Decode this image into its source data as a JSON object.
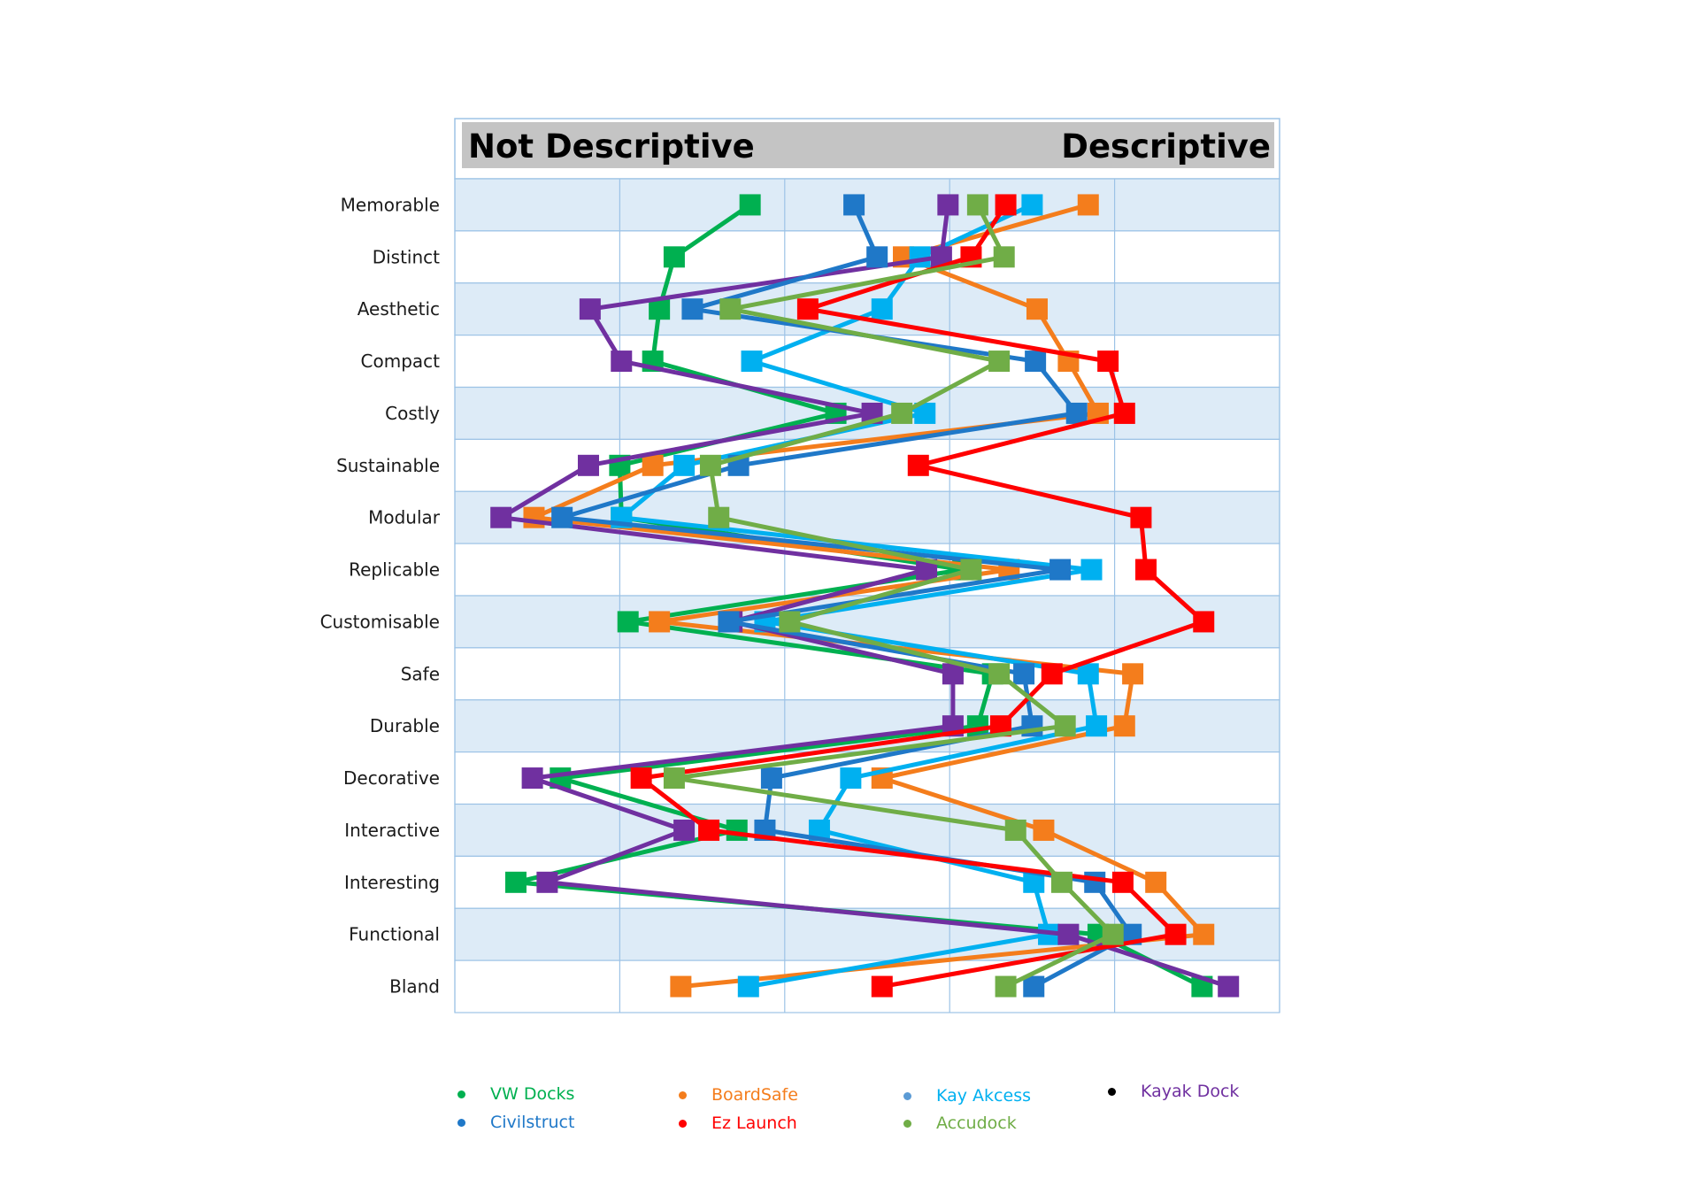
{
  "chart_data": {
    "type": "line",
    "orientation": "horizontal-profile",
    "header": {
      "left": "Not Descriptive",
      "right": "Descriptive"
    },
    "categories": [
      "Memorable",
      "Distinct",
      "Aesthetic",
      "Compact",
      "Costly",
      "Sustainable",
      "Modular",
      "Replicable",
      "Customisable",
      "Safe",
      "Durable",
      "Decorative",
      "Interactive",
      "Interesting",
      "Functional",
      "Bland"
    ],
    "xlim": [
      0,
      5
    ],
    "grid": true,
    "legend_position": "bottom",
    "series": [
      {
        "name": "VW Docks",
        "color": "#00b050",
        "legend_dot": "#00b050",
        "values": [
          1.79,
          1.33,
          1.24,
          1.2,
          2.31,
          1.0,
          1.01,
          3.08,
          1.05,
          3.26,
          3.17,
          0.64,
          1.71,
          0.37,
          3.9,
          4.53
        ]
      },
      {
        "name": "BoardSafe",
        "color": "#f47d1c",
        "legend_dot": "#f47d1c",
        "values": [
          3.84,
          2.72,
          3.53,
          3.72,
          3.9,
          1.2,
          0.48,
          3.36,
          1.24,
          4.11,
          4.06,
          2.59,
          3.57,
          4.25,
          4.54,
          1.37
        ]
      },
      {
        "name": "Kay Akcess",
        "color": "#00b0f0",
        "legend_dot": "#5b9bd5",
        "values": [
          3.5,
          2.82,
          2.59,
          1.8,
          2.85,
          1.39,
          1.01,
          3.86,
          1.88,
          3.84,
          3.89,
          2.4,
          2.21,
          3.51,
          3.6,
          1.78
        ]
      },
      {
        "name": "Kayak Dock",
        "color": "#7030a0",
        "legend_dot": "#000000",
        "values": [
          2.99,
          2.95,
          0.82,
          1.01,
          2.53,
          0.81,
          0.28,
          2.86,
          1.68,
          3.02,
          3.02,
          0.47,
          1.39,
          0.56,
          3.72,
          4.69
        ]
      },
      {
        "name": "Civilstruct",
        "color": "#1f78c8",
        "legend_dot": "#1f78c8",
        "values": [
          2.42,
          2.56,
          1.44,
          3.52,
          3.77,
          1.72,
          0.65,
          3.67,
          1.66,
          3.45,
          3.5,
          1.92,
          1.88,
          3.88,
          4.1,
          3.51
        ]
      },
      {
        "name": "Ez Launch",
        "color": "#ff0000",
        "legend_dot": "#ff0000",
        "values": [
          3.34,
          3.13,
          2.14,
          3.96,
          4.06,
          2.81,
          4.16,
          4.19,
          4.54,
          3.62,
          3.31,
          1.13,
          1.54,
          4.05,
          4.37,
          2.59
        ]
      },
      {
        "name": "Accudock",
        "color": "#70ad47",
        "legend_dot": "#70ad47",
        "values": [
          3.17,
          3.33,
          1.67,
          3.3,
          2.71,
          1.55,
          1.6,
          3.13,
          2.03,
          3.3,
          3.7,
          1.33,
          3.4,
          3.68,
          3.99,
          3.34
        ]
      }
    ]
  }
}
